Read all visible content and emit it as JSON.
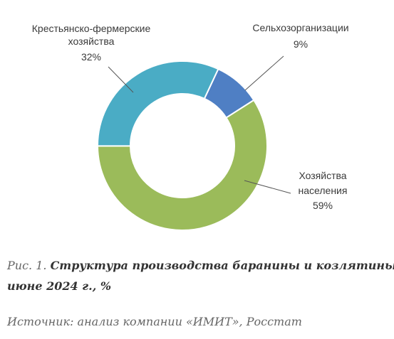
{
  "chart_data": {
    "type": "pie",
    "variant": "donut",
    "unit": "%",
    "slices": [
      {
        "label_lines": [
          "Сельхозорганизации"
        ],
        "value_label": "9%",
        "value": 9,
        "color": "#4f7fc4"
      },
      {
        "label_lines": [
          "Хозяйства",
          "населения"
        ],
        "value_label": "59%",
        "value": 59,
        "color": "#9bbb5a"
      },
      {
        "label_lines": [
          "Крестьянско-фермерские",
          "хозяйства"
        ],
        "value_label": "32%",
        "value": 32,
        "color": "#4aacc5"
      }
    ],
    "start_angle_deg": 25,
    "direction": "clockwise"
  },
  "caption": {
    "prefix": "Рис. 1.",
    "title_line1": "Структура производства баранины и козлятины в",
    "title_line2": "июне 2024 г., %"
  },
  "source": "Источник: анализ компании «ИМИТ», Росстат"
}
